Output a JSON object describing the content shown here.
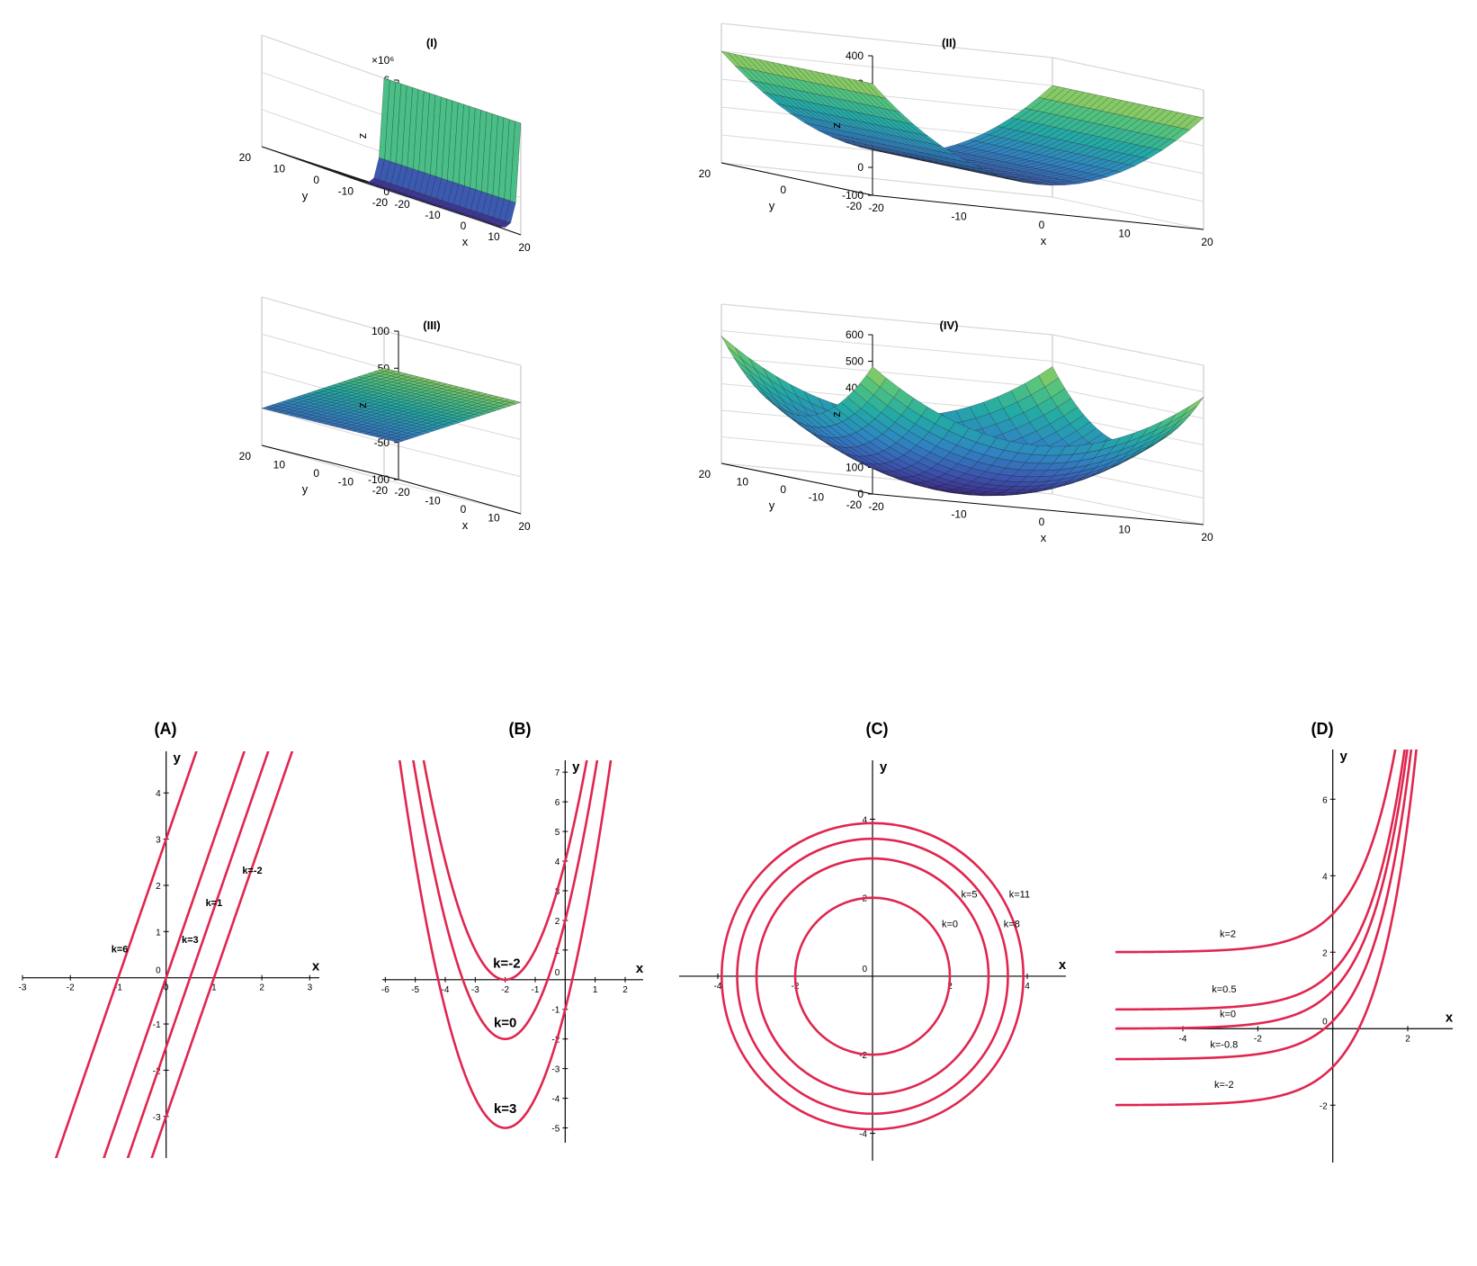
{
  "colors": {
    "contour": "#e0264f",
    "axis": "#000000",
    "grid": "#d9d9d9",
    "box": "#bfbfbf",
    "mesh": "#1a1a1a",
    "colormap": [
      "#3e2a86",
      "#3b58b0",
      "#2f86c2",
      "#22aaa6",
      "#52c37f",
      "#b6d14e",
      "#f4e63a"
    ]
  },
  "surface_panels": [
    {
      "id": "I",
      "title": "(I)",
      "type": "surface3d",
      "exponent_label": "×10⁶",
      "z_ticks": [
        "0",
        "2",
        "4",
        "6"
      ],
      "z_range": [
        0,
        6000000
      ],
      "x_ticks": [
        "-20",
        "-10",
        "0",
        "10",
        "20"
      ],
      "y_ticks": [
        "20",
        "10",
        "0",
        "-10",
        "-20"
      ],
      "x_range": [
        -20,
        20
      ],
      "y_range": [
        -20,
        20
      ],
      "xlabel": "x",
      "ylabel": "y",
      "zlabel": "z",
      "shape": "exponential-in-x"
    },
    {
      "id": "II",
      "title": "(II)",
      "type": "surface3d",
      "z_ticks": [
        "-100",
        "0",
        "100",
        "200",
        "300",
        "400"
      ],
      "z_range": [
        -100,
        400
      ],
      "x_ticks": [
        "-20",
        "-10",
        "0",
        "10",
        "20"
      ],
      "y_ticks": [
        "20",
        "0",
        "-20"
      ],
      "x_range": [
        -20,
        20
      ],
      "y_range": [
        -20,
        20
      ],
      "xlabel": "x",
      "ylabel": "y",
      "zlabel": "z",
      "shape": "parabolic-cylinder-in-x"
    },
    {
      "id": "III",
      "title": "(III)",
      "type": "surface3d",
      "z_ticks": [
        "-100",
        "-50",
        "0",
        "50",
        "100"
      ],
      "z_range": [
        -100,
        100
      ],
      "x_ticks": [
        "-20",
        "-10",
        "0",
        "10",
        "20"
      ],
      "y_ticks": [
        "20",
        "10",
        "0",
        "-10",
        "-20"
      ],
      "x_range": [
        -20,
        20
      ],
      "y_range": [
        -20,
        20
      ],
      "xlabel": "x",
      "ylabel": "y",
      "zlabel": "z",
      "shape": "plane"
    },
    {
      "id": "IV",
      "title": "(IV)",
      "type": "surface3d",
      "z_ticks": [
        "0",
        "100",
        "200",
        "300",
        "400",
        "500",
        "600"
      ],
      "z_range": [
        0,
        600
      ],
      "x_ticks": [
        "-20",
        "-10",
        "0",
        "10",
        "20"
      ],
      "y_ticks": [
        "20",
        "10",
        "0",
        "-10",
        "-20"
      ],
      "x_range": [
        -20,
        20
      ],
      "y_range": [
        -20,
        20
      ],
      "xlabel": "x",
      "ylabel": "y",
      "zlabel": "z",
      "shape": "paraboloid"
    }
  ],
  "chart_data": [
    {
      "id": "A",
      "title": "(A)",
      "type": "line",
      "xlabel": "x",
      "ylabel": "y",
      "xlim": [
        -3,
        3.2
      ],
      "ylim": [
        -3.9,
        4.9
      ],
      "x_ticks": [
        -3,
        -2,
        -1,
        0,
        1,
        2,
        3
      ],
      "y_ticks": [
        -3,
        -2,
        -1,
        1,
        2,
        3,
        4
      ],
      "origin_label": "0",
      "series": [
        {
          "name": "k=6",
          "equation": "y = 3x + 3",
          "label_at": [
            -0.97,
            0.55
          ]
        },
        {
          "name": "k=3",
          "equation": "y = 3x",
          "label_at": [
            0.5,
            0.75
          ]
        },
        {
          "name": "k=1",
          "equation": "y = 3x - 1.5",
          "label_at": [
            1.0,
            1.55
          ]
        },
        {
          "name": "k=-2",
          "equation": "y = 3x - 3",
          "label_at": [
            1.8,
            2.25
          ]
        }
      ]
    },
    {
      "id": "B",
      "title": "(B)",
      "type": "line",
      "xlabel": "x",
      "ylabel": "y",
      "xlim": [
        -6.1,
        2.6
      ],
      "ylim": [
        -5.5,
        7.4
      ],
      "x_ticks": [
        -6,
        -5,
        -4,
        -3,
        -2,
        -1,
        1,
        2
      ],
      "y_ticks": [
        -5,
        -4,
        -3,
        -2,
        -1,
        1,
        2,
        3,
        4,
        5,
        6,
        7
      ],
      "origin_label": "0",
      "series": [
        {
          "name": "k=-2",
          "equation": "y = (x+2)^2",
          "label_at": [
            -1.95,
            0.4
          ]
        },
        {
          "name": "k=0",
          "equation": "y = (x+2)^2 - 2",
          "label_at": [
            -2.0,
            -1.6
          ]
        },
        {
          "name": "k=3",
          "equation": "y = (x+2)^2 - 5",
          "label_at": [
            -2.0,
            -4.5
          ]
        }
      ]
    },
    {
      "id": "C",
      "title": "(C)",
      "type": "line",
      "xlabel": "x",
      "ylabel": "y",
      "xlim": [
        -5,
        5
      ],
      "ylim": [
        -4.7,
        5.5
      ],
      "x_ticks": [
        -4,
        -2,
        2,
        4
      ],
      "y_ticks": [
        -4,
        -2,
        2,
        4
      ],
      "origin_label": "0",
      "series": [
        {
          "name": "k=0",
          "shape": "circle",
          "radius": 2,
          "label_at": [
            2.0,
            1.25
          ]
        },
        {
          "name": "k=5",
          "shape": "circle",
          "radius": 3,
          "label_at": [
            2.5,
            2.0
          ]
        },
        {
          "name": "k=8",
          "shape": "circle",
          "radius": 3.5,
          "label_at": [
            3.6,
            1.25
          ]
        },
        {
          "name": "k=11",
          "shape": "circle",
          "radius": 3.9,
          "label_at": [
            3.8,
            2.0
          ]
        }
      ]
    },
    {
      "id": "D",
      "title": "(D)",
      "type": "line",
      "xlabel": "x",
      "ylabel": "y",
      "xlim": [
        -5.8,
        3.2
      ],
      "ylim": [
        -3.5,
        7.3
      ],
      "x_ticks": [
        -4,
        -2,
        2
      ],
      "y_ticks": [
        -2,
        2,
        4,
        6
      ],
      "origin_label": "0",
      "series": [
        {
          "name": "k=2",
          "equation": "y = e^x + 2",
          "label_at": [
            -2.8,
            2.4
          ]
        },
        {
          "name": "k=0.5",
          "equation": "y = e^x + 0.5",
          "label_at": [
            -2.9,
            0.95
          ]
        },
        {
          "name": "k=0",
          "equation": "y = e^x",
          "label_at": [
            -2.8,
            0.3
          ]
        },
        {
          "name": "k=-0.8",
          "equation": "y = e^x - 0.8",
          "label_at": [
            -2.9,
            -0.5
          ]
        },
        {
          "name": "k=-2",
          "equation": "y = e^x - 2",
          "label_at": [
            -2.9,
            -1.55
          ]
        }
      ]
    }
  ]
}
